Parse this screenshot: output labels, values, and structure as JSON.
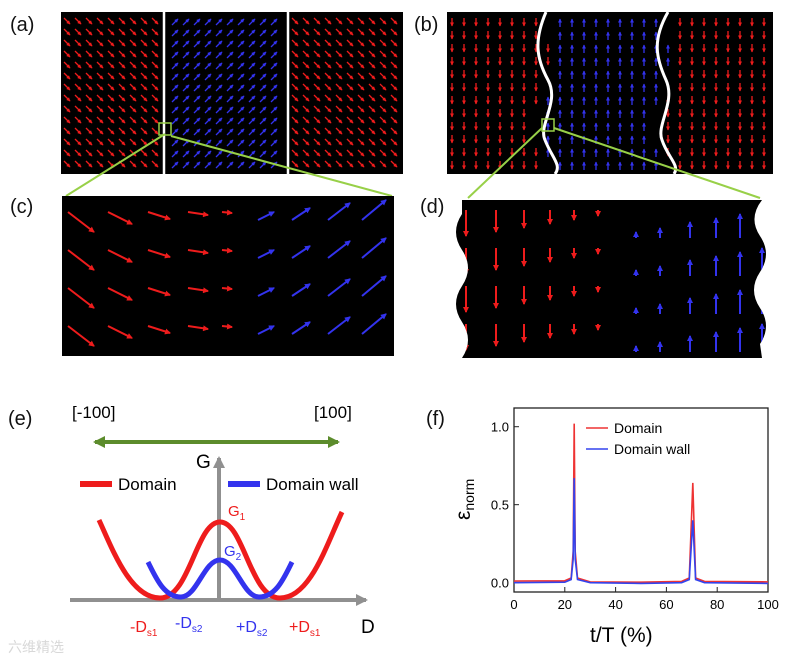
{
  "panel_labels": {
    "a": "(a)",
    "b": "(b)",
    "c": "(c)",
    "d": "(d)",
    "e": "(e)",
    "f": "(f)"
  },
  "colors": {
    "domain": "#ee1c1c",
    "wall": "#3333ee",
    "green": "#5c8c2c",
    "zoomline": "#98d048",
    "axis": "#909090"
  },
  "panel_e": {
    "left_bracket": "[-100]",
    "right_bracket": "[100]",
    "g_axis": "G",
    "d_axis": "D",
    "legend_domain": "Domain",
    "legend_wall": "Domain wall",
    "g1_main": "G",
    "g1_sub": "1",
    "g2_main": "G",
    "g2_sub": "2",
    "ticks": [
      {
        "main": "-D",
        "sub": "s1",
        "color": "red"
      },
      {
        "main": "-D",
        "sub": "s2",
        "color": "blue"
      },
      {
        "main": "+D",
        "sub": "s2",
        "color": "blue"
      },
      {
        "main": "+D",
        "sub": "s1",
        "color": "red"
      }
    ]
  },
  "chart_data": {
    "type": "line",
    "panel": "f",
    "xlabel": "t/T (%)",
    "ylabel_main": "ε",
    "ylabel_sub": "norm",
    "xlim": [
      0,
      100
    ],
    "ylim": [
      -0.06,
      1.12
    ],
    "xticks": [
      0,
      20,
      40,
      60,
      80,
      100
    ],
    "yticks": [
      "0.0",
      "0.5",
      "1.0"
    ],
    "legend_position": "top-right",
    "series": [
      {
        "name": "Domain",
        "color": "#ee3333",
        "points": [
          [
            0,
            0.01
          ],
          [
            20,
            0.012
          ],
          [
            22.5,
            0.03
          ],
          [
            23.3,
            0.2
          ],
          [
            23.7,
            1.02
          ],
          [
            24.1,
            0.2
          ],
          [
            25,
            0.03
          ],
          [
            30,
            0.005
          ],
          [
            50,
            0.003
          ],
          [
            66,
            0.008
          ],
          [
            69,
            0.03
          ],
          [
            70.4,
            0.64
          ],
          [
            71.5,
            0.03
          ],
          [
            75,
            0.008
          ],
          [
            100,
            0.005
          ]
        ]
      },
      {
        "name": "Domain wall",
        "color": "#3344ee",
        "points": [
          [
            0,
            0.0
          ],
          [
            20,
            0.003
          ],
          [
            22.5,
            0.02
          ],
          [
            23.3,
            0.15
          ],
          [
            23.7,
            0.67
          ],
          [
            24.1,
            0.15
          ],
          [
            25,
            0.02
          ],
          [
            30,
            0.0
          ],
          [
            50,
            -0.005
          ],
          [
            66,
            0.0
          ],
          [
            69,
            0.02
          ],
          [
            70.4,
            0.4
          ],
          [
            71.5,
            0.02
          ],
          [
            75,
            0.0
          ],
          [
            100,
            -0.005
          ]
        ]
      }
    ]
  },
  "watermark": "六维精选"
}
